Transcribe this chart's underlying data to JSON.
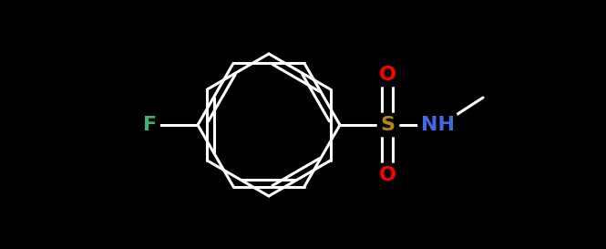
{
  "background_color": "#000000",
  "bond_color": "#ffffff",
  "atom_colors": {
    "F": "#3cb371",
    "S": "#b8860b",
    "N": "#4169e1",
    "O": "#ff0000",
    "C": "#ffffff",
    "H": "#ffffff"
  },
  "bond_width": 2.2,
  "font_size_atom": 16,
  "figsize": [
    6.65,
    2.73
  ],
  "dpi": 100
}
